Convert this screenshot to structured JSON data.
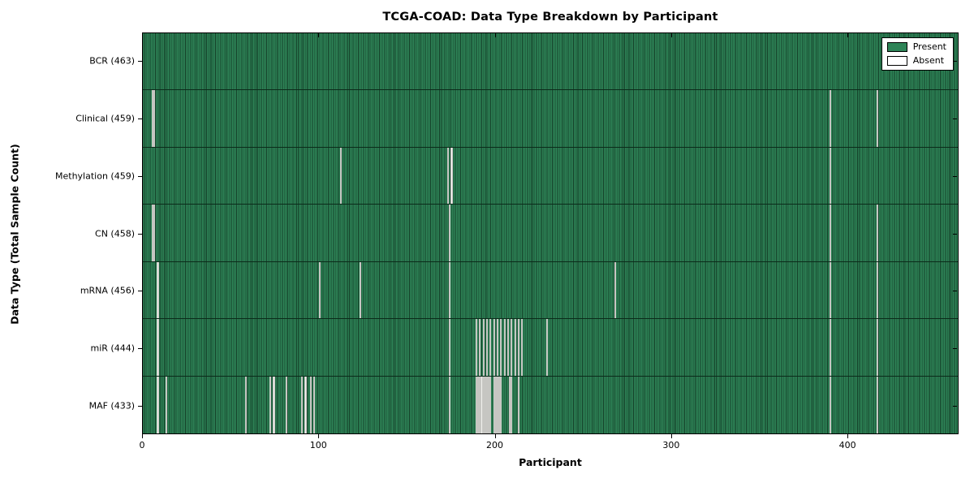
{
  "chart_data": {
    "type": "heatmap",
    "title": "TCGA-COAD: Data Type Breakdown by Participant",
    "xlabel": "Participant",
    "ylabel": "Data Type (Total Sample Count)",
    "x_range": [
      0,
      463
    ],
    "x_ticks": [
      0,
      100,
      200,
      300,
      400
    ],
    "total_participants": 463,
    "grid": false,
    "legend_position": "upper right",
    "legend": [
      {
        "label": "Present",
        "color": "#2e8457"
      },
      {
        "label": "Absent",
        "color": "#ffffff"
      }
    ],
    "colors": {
      "present": "#2e8457",
      "present_edge": "#143f28",
      "absent": "#f2f2ee",
      "axis": "#000000"
    },
    "rows": [
      {
        "name": "BCR",
        "label": "BCR (463)",
        "count": 463,
        "absent": []
      },
      {
        "name": "Clinical",
        "label": "Clinical (459)",
        "count": 459,
        "absent": [
          5,
          6,
          390,
          417
        ]
      },
      {
        "name": "Methylation",
        "label": "Methylation (459)",
        "count": 459,
        "absent": [
          112,
          173,
          175,
          390
        ]
      },
      {
        "name": "CN",
        "label": "CN (458)",
        "count": 458,
        "absent": [
          5,
          6,
          174,
          390,
          417
        ]
      },
      {
        "name": "mRNA",
        "label": "mRNA (456)",
        "count": 456,
        "absent": [
          8,
          100,
          123,
          174,
          268,
          390,
          417
        ]
      },
      {
        "name": "miR",
        "label": "miR (444)",
        "count": 444,
        "absent": [
          8,
          174,
          189,
          191,
          193,
          195,
          197,
          199,
          201,
          203,
          205,
          207,
          209,
          211,
          213,
          215,
          229,
          390,
          417
        ]
      },
      {
        "name": "MAF",
        "label": "MAF (433)",
        "count": 433,
        "absent": [
          8,
          13,
          58,
          72,
          74,
          81,
          90,
          92,
          95,
          97,
          174,
          189,
          190,
          191,
          192,
          193,
          194,
          195,
          196,
          197,
          199,
          200,
          201,
          202,
          203,
          208,
          209,
          213,
          390,
          417
        ]
      }
    ]
  }
}
